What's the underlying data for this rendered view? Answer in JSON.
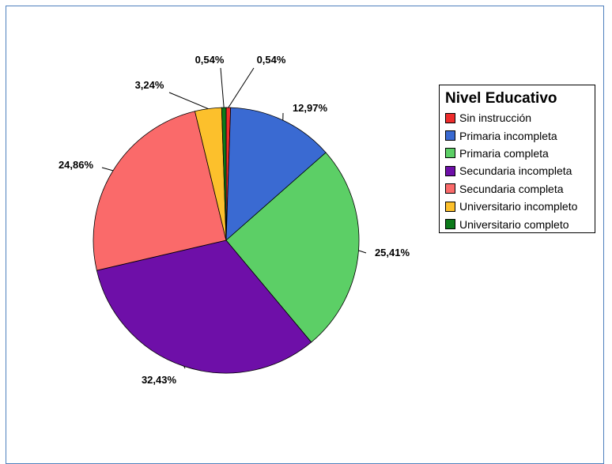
{
  "chart_data": {
    "type": "pie",
    "legend_title": "Nivel Educativo",
    "legend_position": "right",
    "slices": [
      {
        "label": "Sin instrucción",
        "value": 0.54,
        "display": "0,54%",
        "color": "#ee2c2c"
      },
      {
        "label": "Primaria incompleta",
        "value": 12.97,
        "display": "12,97%",
        "color": "#3a6ad2"
      },
      {
        "label": "Primaria completa",
        "value": 25.41,
        "display": "25,41%",
        "color": "#5ccf66"
      },
      {
        "label": "Secundaria incompleta",
        "value": 32.43,
        "display": "32,43%",
        "color": "#6e0fa8"
      },
      {
        "label": "Secundaria completa",
        "value": 24.86,
        "display": "24,86%",
        "color": "#fa6a6a"
      },
      {
        "label": "Universitario incompleto",
        "value": 3.24,
        "display": "3,24%",
        "color": "#fcc02c"
      },
      {
        "label": "Universitario completo",
        "value": 0.54,
        "display": "0,54%",
        "color": "#0c7a1a"
      }
    ]
  }
}
